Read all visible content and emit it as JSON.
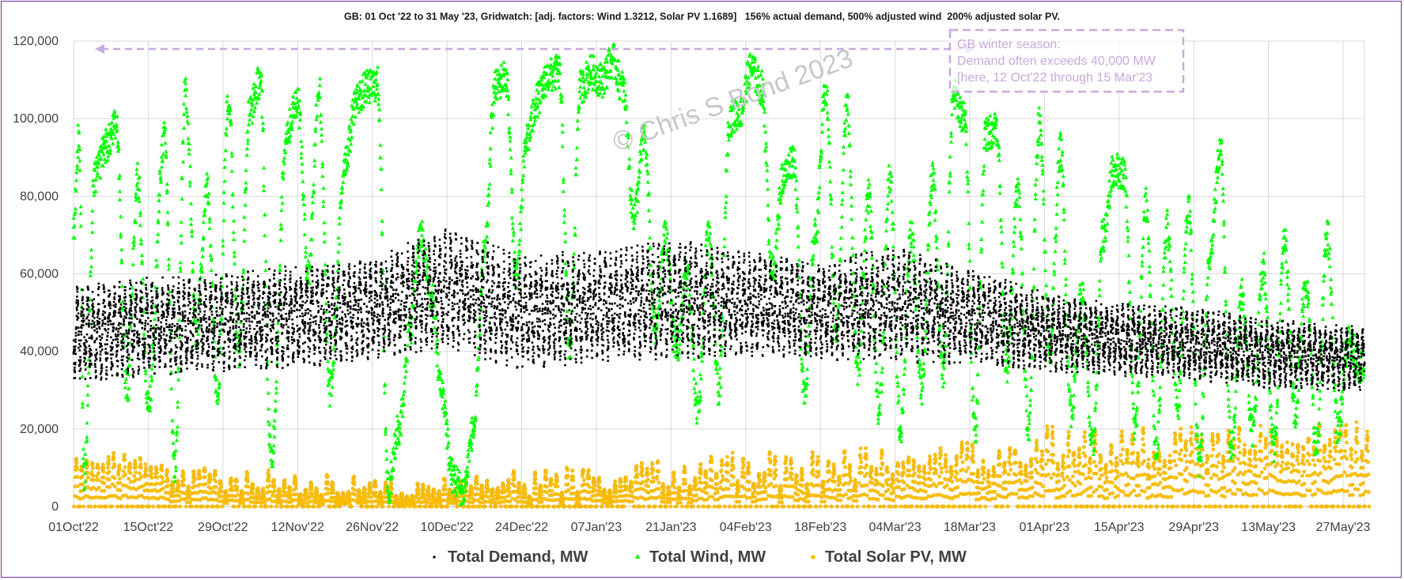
{
  "chart_data": {
    "type": "scatter",
    "title": "GB: 01 Oct '22 to 31 May '23, Gridwatch: [adj. factors: Wind 1.3212, Solar PV 1.1689]   156% actual demand, 500% adjusted wind  200% adjusted solar PV.",
    "xlabel": "",
    "ylabel": "",
    "ylim": [
      0,
      120000
    ],
    "x_range": [
      "2022-10-01",
      "2023-05-31"
    ],
    "grid": true,
    "legend_position": "bottom",
    "y_ticks": [
      "0",
      "20,000",
      "40,000",
      "60,000",
      "80,000",
      "100,000",
      "120,000"
    ],
    "x_ticks": [
      "01Oct'22",
      "15Oct'22",
      "29Oct'22",
      "12Nov'22",
      "26Nov'22",
      "10Dec'22",
      "24Dec'22",
      "07Jan'23",
      "21Jan'23",
      "04Feb'23",
      "18Feb'23",
      "04Mar'23",
      "18Mar'23",
      "01Apr'23",
      "15Apr'23",
      "29Apr'23",
      "13May'23",
      "27May'23"
    ],
    "series": [
      {
        "name": "Total Demand, MW",
        "color": "#000000",
        "marker": "dot",
        "envelope": {
          "x": [
            "2022-10-01",
            "2022-10-15",
            "2022-10-29",
            "2022-11-12",
            "2022-11-26",
            "2022-12-10",
            "2022-12-24",
            "2023-01-07",
            "2023-01-21",
            "2023-02-04",
            "2023-02-18",
            "2023-03-04",
            "2023-03-18",
            "2023-04-01",
            "2023-04-15",
            "2023-04-29",
            "2023-05-13",
            "2023-05-31"
          ],
          "low": [
            31000,
            33000,
            34000,
            35000,
            37000,
            40000,
            34000,
            36000,
            37000,
            38000,
            37000,
            36000,
            36000,
            34000,
            33000,
            32000,
            30000,
            29000
          ],
          "high": [
            58000,
            60000,
            61000,
            63000,
            65000,
            73000,
            66000,
            67000,
            70000,
            67000,
            64000,
            68000,
            62000,
            56000,
            53000,
            52000,
            49000,
            47000
          ]
        }
      },
      {
        "name": "Total Wind, MW",
        "color": "#00ff00",
        "marker": "triangle",
        "peaks": [
          {
            "x": "2022-10-01",
            "y": 72000
          },
          {
            "x": "2022-10-02",
            "y": 96000
          },
          {
            "x": "2022-10-03",
            "y": 8000
          },
          {
            "x": "2022-10-05",
            "y": 85000
          },
          {
            "x": "2022-10-07",
            "y": 93000
          },
          {
            "x": "2022-10-09",
            "y": 98000
          },
          {
            "x": "2022-10-11",
            "y": 30000
          },
          {
            "x": "2022-10-13",
            "y": 85000
          },
          {
            "x": "2022-10-15",
            "y": 25000
          },
          {
            "x": "2022-10-18",
            "y": 95000
          },
          {
            "x": "2022-10-20",
            "y": 10000
          },
          {
            "x": "2022-10-22",
            "y": 107000
          },
          {
            "x": "2022-10-24",
            "y": 45000
          },
          {
            "x": "2022-10-26",
            "y": 82000
          },
          {
            "x": "2022-10-28",
            "y": 30000
          },
          {
            "x": "2022-10-30",
            "y": 105000
          },
          {
            "x": "2022-11-01",
            "y": 40000
          },
          {
            "x": "2022-11-03",
            "y": 102000
          },
          {
            "x": "2022-11-05",
            "y": 110000
          },
          {
            "x": "2022-11-07",
            "y": 12000
          },
          {
            "x": "2022-11-10",
            "y": 97000
          },
          {
            "x": "2022-11-12",
            "y": 105000
          },
          {
            "x": "2022-11-14",
            "y": 60000
          },
          {
            "x": "2022-11-16",
            "y": 108000
          },
          {
            "x": "2022-11-18",
            "y": 30000
          },
          {
            "x": "2022-11-21",
            "y": 90000
          },
          {
            "x": "2022-11-23",
            "y": 105000
          },
          {
            "x": "2022-11-25",
            "y": 108000
          },
          {
            "x": "2022-11-27",
            "y": 109000
          },
          {
            "x": "2022-11-29",
            "y": 5000
          },
          {
            "x": "2022-12-01",
            "y": 20000
          },
          {
            "x": "2022-12-03",
            "y": 45000
          },
          {
            "x": "2022-12-05",
            "y": 70000
          },
          {
            "x": "2022-12-07",
            "y": 55000
          },
          {
            "x": "2022-12-09",
            "y": 30000
          },
          {
            "x": "2022-12-11",
            "y": 8000
          },
          {
            "x": "2022-12-13",
            "y": 4000
          },
          {
            "x": "2022-12-15",
            "y": 20000
          },
          {
            "x": "2022-12-17",
            "y": 65000
          },
          {
            "x": "2022-12-19",
            "y": 108000
          },
          {
            "x": "2022-12-21",
            "y": 111000
          },
          {
            "x": "2022-12-23",
            "y": 60000
          },
          {
            "x": "2022-12-25",
            "y": 95000
          },
          {
            "x": "2022-12-27",
            "y": 105000
          },
          {
            "x": "2022-12-29",
            "y": 111000
          },
          {
            "x": "2022-12-31",
            "y": 112000
          },
          {
            "x": "2023-01-02",
            "y": 40000
          },
          {
            "x": "2023-01-04",
            "y": 108000
          },
          {
            "x": "2023-01-06",
            "y": 112000
          },
          {
            "x": "2023-01-08",
            "y": 110000
          },
          {
            "x": "2023-01-10",
            "y": 115000
          },
          {
            "x": "2023-01-12",
            "y": 108000
          },
          {
            "x": "2023-01-14",
            "y": 75000
          },
          {
            "x": "2023-01-16",
            "y": 95000
          },
          {
            "x": "2023-01-18",
            "y": 45000
          },
          {
            "x": "2023-01-20",
            "y": 70000
          },
          {
            "x": "2023-01-22",
            "y": 40000
          },
          {
            "x": "2023-01-24",
            "y": 60000
          },
          {
            "x": "2023-01-26",
            "y": 25000
          },
          {
            "x": "2023-01-28",
            "y": 70000
          },
          {
            "x": "2023-01-30",
            "y": 30000
          },
          {
            "x": "2023-02-01",
            "y": 100000
          },
          {
            "x": "2023-02-03",
            "y": 102000
          },
          {
            "x": "2023-02-05",
            "y": 113000
          },
          {
            "x": "2023-02-07",
            "y": 108000
          },
          {
            "x": "2023-02-09",
            "y": 60000
          },
          {
            "x": "2023-02-11",
            "y": 85000
          },
          {
            "x": "2023-02-13",
            "y": 90000
          },
          {
            "x": "2023-02-15",
            "y": 30000
          },
          {
            "x": "2023-02-17",
            "y": 70000
          },
          {
            "x": "2023-02-19",
            "y": 107000
          },
          {
            "x": "2023-02-21",
            "y": 45000
          },
          {
            "x": "2023-02-23",
            "y": 104000
          },
          {
            "x": "2023-02-25",
            "y": 35000
          },
          {
            "x": "2023-02-27",
            "y": 80000
          },
          {
            "x": "2023-03-01",
            "y": 25000
          },
          {
            "x": "2023-03-03",
            "y": 85000
          },
          {
            "x": "2023-03-05",
            "y": 20000
          },
          {
            "x": "2023-03-07",
            "y": 70000
          },
          {
            "x": "2023-03-09",
            "y": 30000
          },
          {
            "x": "2023-03-11",
            "y": 85000
          },
          {
            "x": "2023-03-13",
            "y": 35000
          },
          {
            "x": "2023-03-15",
            "y": 106000
          },
          {
            "x": "2023-03-17",
            "y": 100000
          },
          {
            "x": "2023-03-19",
            "y": 20000
          },
          {
            "x": "2023-03-21",
            "y": 96000
          },
          {
            "x": "2023-03-23",
            "y": 98000
          },
          {
            "x": "2023-03-25",
            "y": 35000
          },
          {
            "x": "2023-03-27",
            "y": 82000
          },
          {
            "x": "2023-03-29",
            "y": 20000
          },
          {
            "x": "2023-03-31",
            "y": 99000
          },
          {
            "x": "2023-04-02",
            "y": 40000
          },
          {
            "x": "2023-04-04",
            "y": 92000
          },
          {
            "x": "2023-04-06",
            "y": 25000
          },
          {
            "x": "2023-04-08",
            "y": 55000
          },
          {
            "x": "2023-04-10",
            "y": 15000
          },
          {
            "x": "2023-04-12",
            "y": 70000
          },
          {
            "x": "2023-04-14",
            "y": 87000
          },
          {
            "x": "2023-04-16",
            "y": 86000
          },
          {
            "x": "2023-04-18",
            "y": 20000
          },
          {
            "x": "2023-04-20",
            "y": 78000
          },
          {
            "x": "2023-04-22",
            "y": 15000
          },
          {
            "x": "2023-04-24",
            "y": 72000
          },
          {
            "x": "2023-04-26",
            "y": 25000
          },
          {
            "x": "2023-04-28",
            "y": 77000
          },
          {
            "x": "2023-04-30",
            "y": 12000
          },
          {
            "x": "2023-05-02",
            "y": 65000
          },
          {
            "x": "2023-05-04",
            "y": 92000
          },
          {
            "x": "2023-05-06",
            "y": 15000
          },
          {
            "x": "2023-05-08",
            "y": 55000
          },
          {
            "x": "2023-05-10",
            "y": 20000
          },
          {
            "x": "2023-05-12",
            "y": 62000
          },
          {
            "x": "2023-05-14",
            "y": 15000
          },
          {
            "x": "2023-05-16",
            "y": 68000
          },
          {
            "x": "2023-05-18",
            "y": 25000
          },
          {
            "x": "2023-05-20",
            "y": 58000
          },
          {
            "x": "2023-05-22",
            "y": 15000
          },
          {
            "x": "2023-05-24",
            "y": 70000
          },
          {
            "x": "2023-05-26",
            "y": 20000
          },
          {
            "x": "2023-05-28",
            "y": 42000
          },
          {
            "x": "2023-05-31",
            "y": 35000
          }
        ]
      },
      {
        "name": "Total Solar PV, MW",
        "color": "#ffc000",
        "marker": "circle",
        "daily_peak_range": {
          "x": [
            "2022-10-01",
            "2022-11-01",
            "2022-12-01",
            "2023-01-01",
            "2023-02-01",
            "2023-03-01",
            "2023-04-01",
            "2023-05-01",
            "2023-05-31"
          ],
          "low": [
            8000,
            4000,
            2000,
            3000,
            5000,
            7000,
            10000,
            13000,
            15000
          ],
          "high": [
            16000,
            10000,
            8000,
            11000,
            14000,
            16000,
            21000,
            22000,
            23000
          ]
        }
      }
    ]
  },
  "annotations": {
    "watermark": "© Chris S Bond  2023",
    "note_lines": [
      "GB winter season:",
      "Demand often exceeds 40,000 MW",
      "[here, 12 Oct'22 through 15 Mar'23"
    ],
    "note_color": "#c9a8dc",
    "arrow_x_range": [
      "2022-10-05",
      "2023-03-19"
    ]
  }
}
